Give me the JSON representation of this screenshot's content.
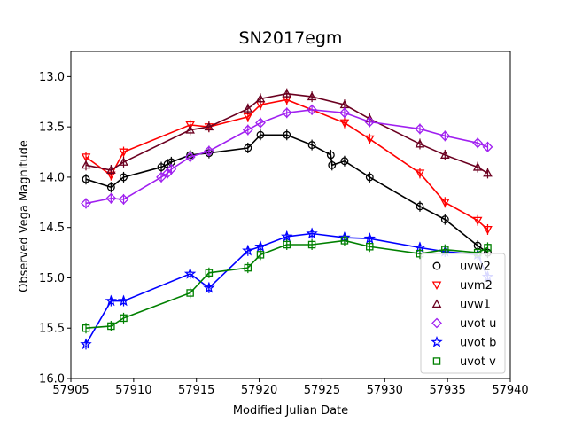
{
  "chart_data": {
    "type": "line",
    "title": "SN2017egm",
    "xlabel": "Modified Julian Date",
    "ylabel": "Observed Vega Magnitude",
    "xlim": [
      57905,
      57940
    ],
    "ylim": [
      16.0,
      12.75
    ],
    "y_inverted": true,
    "grid": false,
    "legend_position": "lower-right",
    "x_ticks": [
      57905,
      57910,
      57915,
      57920,
      57925,
      57930,
      57935,
      57940
    ],
    "x_tick_labels": [
      "57905",
      "57910",
      "57915",
      "57920",
      "57925",
      "57930",
      "57935",
      "57940"
    ],
    "y_ticks": [
      13.0,
      13.5,
      14.0,
      14.5,
      15.0,
      15.5,
      16.0
    ],
    "y_tick_labels": [
      "13.0",
      "13.5",
      "14.0",
      "14.5",
      "15.0",
      "15.5",
      "16.0"
    ],
    "series": [
      {
        "name": "uvw2",
        "color": "#000000",
        "marker": "circle",
        "x": [
          57906.2,
          57908.2,
          57909.2,
          57912.2,
          57912.7,
          57913.0,
          57914.5,
          57916.0,
          57919.1,
          57920.1,
          57922.2,
          57924.2,
          57925.7,
          57925.8,
          57926.8,
          57928.8,
          57932.8,
          57934.8,
          57937.4,
          57938.2
        ],
        "y": [
          14.02,
          14.1,
          14.0,
          13.9,
          13.87,
          13.85,
          13.78,
          13.76,
          13.71,
          13.58,
          13.58,
          13.68,
          13.78,
          13.88,
          13.84,
          14.0,
          14.29,
          14.42,
          14.68,
          14.75
        ]
      },
      {
        "name": "uvm2",
        "color": "#ff0000",
        "marker": "triangle-down",
        "x": [
          57906.2,
          57908.2,
          57909.2,
          57914.5,
          57916.0,
          57919.1,
          57920.1,
          57922.2,
          57926.8,
          57928.8,
          57932.8,
          57934.8,
          57937.4,
          57938.2
        ],
        "y": [
          13.8,
          13.98,
          13.75,
          13.48,
          13.5,
          13.4,
          13.28,
          13.23,
          13.46,
          13.62,
          13.96,
          14.25,
          14.43,
          14.52
        ]
      },
      {
        "name": "uvw1",
        "color": "#6b0020",
        "marker": "triangle-up",
        "x": [
          57906.2,
          57908.2,
          57909.2,
          57914.5,
          57916.0,
          57919.1,
          57920.1,
          57922.2,
          57924.2,
          57926.8,
          57928.8,
          57932.8,
          57934.8,
          57937.4,
          57938.2
        ],
        "y": [
          13.88,
          13.93,
          13.85,
          13.53,
          13.5,
          13.32,
          13.22,
          13.17,
          13.2,
          13.28,
          13.42,
          13.67,
          13.78,
          13.9,
          13.96
        ]
      },
      {
        "name": "uvot u",
        "color": "#a020f0",
        "marker": "diamond",
        "x": [
          57906.2,
          57908.2,
          57909.2,
          57912.2,
          57912.7,
          57913.0,
          57914.5,
          57916.0,
          57919.1,
          57920.1,
          57922.2,
          57924.2,
          57926.8,
          57928.8,
          57932.8,
          57934.8,
          57937.4,
          57938.2
        ],
        "y": [
          14.26,
          14.21,
          14.22,
          14.0,
          13.96,
          13.92,
          13.8,
          13.74,
          13.53,
          13.46,
          13.36,
          13.33,
          13.36,
          13.45,
          13.52,
          13.59,
          13.66,
          13.7
        ]
      },
      {
        "name": "uvot b",
        "color": "#0000ff",
        "marker": "star",
        "x": [
          57906.2,
          57908.2,
          57909.2,
          57914.5,
          57916.0,
          57919.1,
          57920.1,
          57922.2,
          57924.2,
          57926.8,
          57928.8,
          57932.8,
          57934.8,
          57937.4,
          57938.2
        ],
        "y": [
          15.66,
          15.23,
          15.23,
          14.96,
          15.1,
          14.73,
          14.69,
          14.59,
          14.56,
          14.6,
          14.61,
          14.7,
          14.74,
          14.77,
          14.99
        ]
      },
      {
        "name": "uvot v",
        "color": "#008000",
        "marker": "square",
        "x": [
          57906.2,
          57908.2,
          57909.2,
          57914.5,
          57916.0,
          57919.1,
          57920.1,
          57922.2,
          57924.2,
          57926.8,
          57928.8,
          57932.8,
          57934.8,
          57937.4,
          57938.2
        ],
        "y": [
          15.5,
          15.48,
          15.4,
          15.15,
          14.95,
          14.9,
          14.77,
          14.67,
          14.67,
          14.63,
          14.69,
          14.76,
          14.72,
          14.75,
          14.7
        ]
      }
    ]
  }
}
